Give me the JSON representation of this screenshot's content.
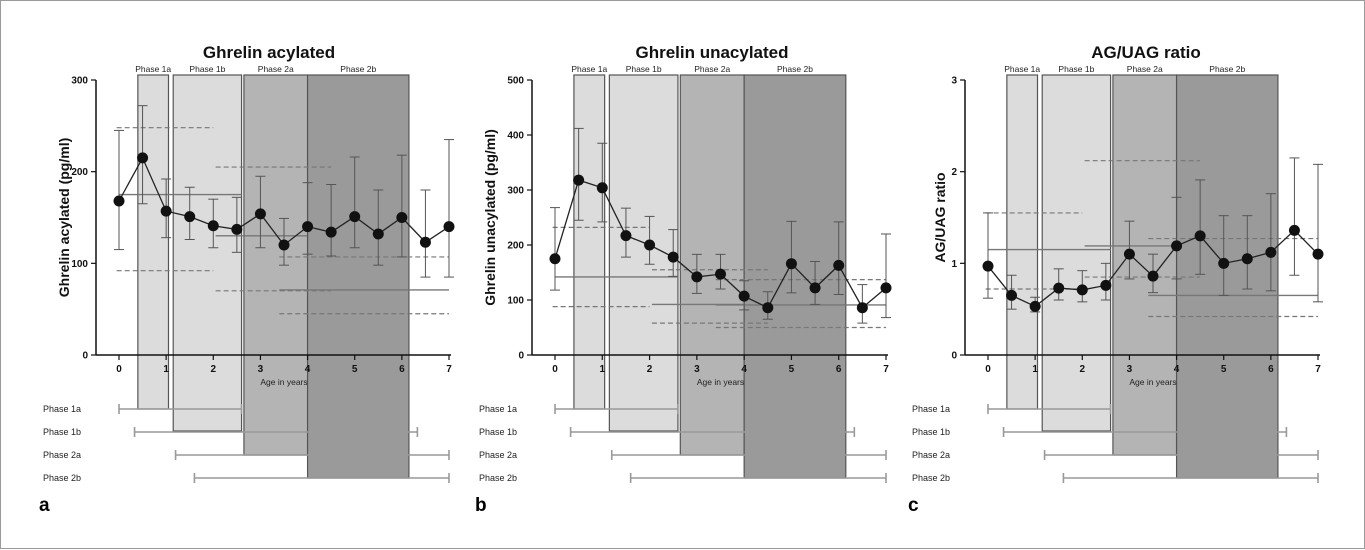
{
  "colors": {
    "phase_1a": "#dcdcdc",
    "phase_1b": "#dcdcdc",
    "phase_2a": "#b4b4b4",
    "phase_2b": "#9a9a9a",
    "phase_border": "#555555",
    "mean_line": "#222222",
    "marker": "#111111",
    "error_bar": "#555555",
    "median_line": "#777777",
    "range_line": "#999999"
  },
  "chart_data": [
    {
      "type": "line",
      "panel_letter": "a",
      "title": "Ghrelin acylated",
      "ylabel": "Ghrelin acylated (pg/ml)",
      "xlabel": "Age in years",
      "xlim": [
        0,
        7
      ],
      "ylim": [
        0,
        300
      ],
      "xticks": [
        "0",
        "1",
        "2",
        "3",
        "4",
        "5",
        "6",
        "7"
      ],
      "yticks": [
        "0",
        "100",
        "200",
        "300"
      ],
      "grid": false,
      "x": [
        0,
        0.5,
        1,
        1.5,
        2,
        2.5,
        3,
        3.5,
        4,
        4.5,
        5,
        5.5,
        6,
        6.5,
        7
      ],
      "values": [
        168,
        215,
        157,
        151,
        141,
        137,
        154,
        120,
        140,
        134,
        151,
        132,
        150,
        123,
        140
      ],
      "err_high": [
        245,
        272,
        192,
        183,
        170,
        172,
        195,
        149,
        188,
        186,
        216,
        180,
        218,
        180,
        235
      ],
      "err_low": [
        115,
        165,
        128,
        126,
        117,
        112,
        117,
        98,
        110,
        108,
        117,
        98,
        107,
        85,
        85
      ],
      "phases": [
        {
          "name": "Phase 1a",
          "start": 0.4,
          "end": 1.05,
          "bar_start": 0,
          "bar_end": 2.6,
          "median": 175,
          "q1": 92,
          "q3": 248
        },
        {
          "name": "Phase 1b",
          "start": 1.15,
          "end": 2.6,
          "bar_start": 0.33,
          "bar_end": 6.33,
          "median": 175,
          "q1": 92,
          "q3": 248
        },
        {
          "name": "Phase 2a",
          "start": 2.65,
          "end": 4.0,
          "bar_start": 1.2,
          "bar_end": 7,
          "median": 130,
          "q1": 70,
          "q3": 205
        },
        {
          "name": "Phase 2b",
          "start": 4.0,
          "end": 6.15,
          "bar_start": 1.6,
          "bar_end": 7,
          "median": 71,
          "q1": 45,
          "q3": 107
        }
      ]
    },
    {
      "type": "line",
      "panel_letter": "b",
      "title": "Ghrelin unacylated",
      "ylabel": "Ghrelin unacylated (pg/ml)",
      "xlabel": "Age in years",
      "xlim": [
        0,
        7
      ],
      "ylim": [
        0,
        500
      ],
      "xticks": [
        "0",
        "1",
        "2",
        "3",
        "4",
        "5",
        "6",
        "7"
      ],
      "yticks": [
        "0",
        "100",
        "200",
        "300",
        "400",
        "500"
      ],
      "grid": false,
      "x": [
        0,
        0.5,
        1,
        1.5,
        2,
        2.5,
        3,
        3.5,
        4,
        4.5,
        5,
        5.5,
        6,
        6.5,
        7
      ],
      "values": [
        175,
        318,
        304,
        217,
        200,
        178,
        142,
        147,
        107,
        86,
        166,
        122,
        163,
        86,
        122
      ],
      "err_high": [
        268,
        412,
        385,
        267,
        252,
        228,
        183,
        183,
        135,
        115,
        243,
        170,
        242,
        128,
        220
      ],
      "err_low": [
        118,
        245,
        242,
        178,
        165,
        143,
        112,
        120,
        82,
        65,
        113,
        92,
        110,
        58,
        68
      ],
      "phases": [
        {
          "name": "Phase 1a",
          "start": 0.4,
          "end": 1.05,
          "bar_start": 0,
          "bar_end": 2.6,
          "median": 142,
          "q1": 88,
          "q3": 232
        },
        {
          "name": "Phase 1b",
          "start": 1.15,
          "end": 2.6,
          "bar_start": 0.33,
          "bar_end": 6.33,
          "median": 142,
          "q1": 88,
          "q3": 232
        },
        {
          "name": "Phase 2a",
          "start": 2.65,
          "end": 4.0,
          "bar_start": 1.2,
          "bar_end": 7,
          "median": 92,
          "q1": 58,
          "q3": 155
        },
        {
          "name": "Phase 2b",
          "start": 4.0,
          "end": 6.15,
          "bar_start": 1.6,
          "bar_end": 7,
          "median": 91,
          "q1": 50,
          "q3": 137
        }
      ]
    },
    {
      "type": "line",
      "panel_letter": "c",
      "title": "AG/UAG ratio",
      "ylabel": "AG/UAG ratio",
      "xlabel": "Age in years",
      "xlim": [
        0,
        7
      ],
      "ylim": [
        0,
        3
      ],
      "xticks": [
        "0",
        "1",
        "2",
        "3",
        "4",
        "5",
        "6",
        "7"
      ],
      "yticks": [
        "0",
        "1",
        "2",
        "3"
      ],
      "grid": false,
      "x": [
        0,
        0.5,
        1,
        1.5,
        2,
        2.5,
        3,
        3.5,
        4,
        4.5,
        5,
        5.5,
        6,
        6.5,
        7
      ],
      "values": [
        0.97,
        0.65,
        0.53,
        0.73,
        0.71,
        0.76,
        1.1,
        0.86,
        1.19,
        1.3,
        1.0,
        1.05,
        1.12,
        1.36,
        1.1
      ],
      "err_high": [
        1.55,
        0.87,
        0.63,
        0.94,
        0.92,
        1.0,
        1.46,
        1.1,
        1.72,
        1.91,
        1.52,
        1.52,
        1.76,
        2.15,
        2.08
      ],
      "err_low": [
        0.62,
        0.5,
        0.47,
        0.6,
        0.58,
        0.6,
        0.83,
        0.68,
        0.83,
        0.88,
        0.65,
        0.72,
        0.7,
        0.87,
        0.58
      ],
      "phases": [
        {
          "name": "Phase 1a",
          "start": 0.4,
          "end": 1.05,
          "bar_start": 0,
          "bar_end": 2.6,
          "median": 1.15,
          "q1": 0.72,
          "q3": 1.55
        },
        {
          "name": "Phase 1b",
          "start": 1.15,
          "end": 2.6,
          "bar_start": 0.33,
          "bar_end": 6.33,
          "median": 1.15,
          "q1": 0.72,
          "q3": 1.55
        },
        {
          "name": "Phase 2a",
          "start": 2.65,
          "end": 4.0,
          "bar_start": 1.2,
          "bar_end": 7,
          "median": 1.19,
          "q1": 0.85,
          "q3": 2.12
        },
        {
          "name": "Phase 2b",
          "start": 4.0,
          "end": 6.15,
          "bar_start": 1.6,
          "bar_end": 7,
          "median": 0.65,
          "q1": 0.42,
          "q3": 1.27
        }
      ]
    }
  ]
}
